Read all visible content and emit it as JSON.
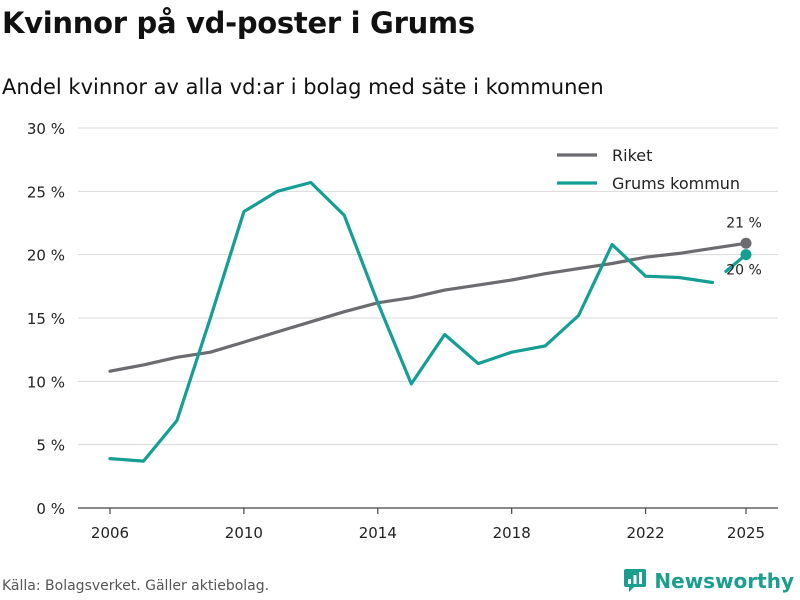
{
  "title": "Kvinnor på vd-poster i Grums",
  "subtitle": "Andel kvinnor av alla vd:ar i bolag med säte i kommunen",
  "footer": {
    "source": "Källa: Bolagsverket. Gäller aktiebolag.",
    "brand": "Newsworthy"
  },
  "colors": {
    "riket": "#6b6b70",
    "grums": "#159e94",
    "grid": "#d9d9d9",
    "brand": "#1a9e8e"
  },
  "chart_data": {
    "type": "line",
    "title": "",
    "xlabel": "",
    "ylabel": "",
    "ylim": [
      0,
      30
    ],
    "xlim": [
      2006,
      2025
    ],
    "yticks": [
      0,
      5,
      10,
      15,
      20,
      25,
      30
    ],
    "ytick_labels": [
      "0 %",
      "5 %",
      "10 %",
      "15 %",
      "20 %",
      "25 %",
      "30 %"
    ],
    "xticks": [
      2006,
      2010,
      2014,
      2018,
      2022,
      2025
    ],
    "xtick_labels": [
      "2006",
      "2010",
      "2014",
      "2018",
      "2022",
      "2025"
    ],
    "grid": true,
    "legend_position": "top-right",
    "series": [
      {
        "name": "Riket",
        "color": "#6b6b70",
        "x": [
          2006,
          2007,
          2008,
          2009,
          2010,
          2011,
          2012,
          2013,
          2014,
          2015,
          2016,
          2017,
          2018,
          2019,
          2020,
          2021,
          2022,
          2023,
          2024,
          2025
        ],
        "values": [
          10.8,
          11.3,
          11.9,
          12.3,
          13.1,
          13.9,
          14.7,
          15.5,
          16.2,
          16.6,
          17.2,
          17.6,
          18.0,
          18.5,
          18.9,
          19.3,
          19.8,
          20.1,
          20.5,
          20.9
        ],
        "end_label": "21 %"
      },
      {
        "name": "Grums kommun",
        "color": "#159e94",
        "x": [
          2006,
          2007,
          2008,
          2009,
          2010,
          2011,
          2012,
          2013,
          2014,
          2015,
          2016,
          2017,
          2018,
          2019,
          2020,
          2021,
          2022,
          2023,
          2024,
          2025
        ],
        "values": [
          3.9,
          3.7,
          6.9,
          15.0,
          23.4,
          25.0,
          25.7,
          23.1,
          16.2,
          9.8,
          13.7,
          11.4,
          12.3,
          12.8,
          15.2,
          20.8,
          18.3,
          18.2,
          17.8,
          20.0
        ],
        "end_label": "20 %"
      }
    ]
  }
}
